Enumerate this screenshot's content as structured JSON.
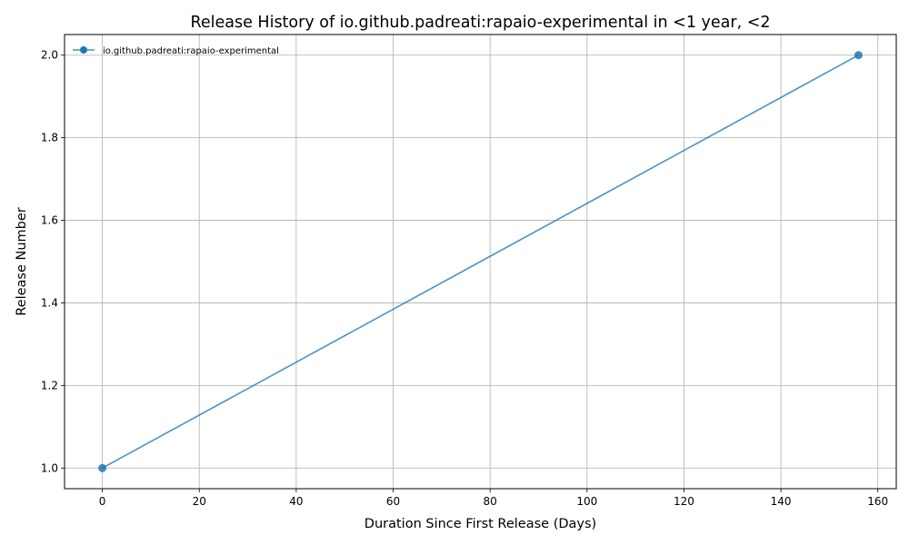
{
  "chart_data": {
    "type": "line",
    "title": "Release History of io.github.padreati:rapaio-experimental in <1 year, <2",
    "xlabel": "Duration Since First Release (Days)",
    "ylabel": "Release Number",
    "xlim": [
      -7.8,
      163.8
    ],
    "ylim": [
      0.95,
      2.05
    ],
    "x_ticks": [
      0,
      20,
      40,
      60,
      80,
      100,
      120,
      140,
      160
    ],
    "y_ticks": [
      1.0,
      1.2,
      1.4,
      1.6,
      1.8,
      2.0
    ],
    "x_tick_labels": [
      "0",
      "20",
      "40",
      "60",
      "80",
      "100",
      "120",
      "140",
      "160"
    ],
    "y_tick_labels": [
      "1.0",
      "1.2",
      "1.4",
      "1.6",
      "1.8",
      "2.0"
    ],
    "grid": true,
    "legend_position": "top-left",
    "series": [
      {
        "name": "io.github.padreati:rapaio-experimental",
        "color": "#1f77b4",
        "x": [
          0,
          156
        ],
        "y": [
          1,
          2
        ]
      }
    ]
  }
}
